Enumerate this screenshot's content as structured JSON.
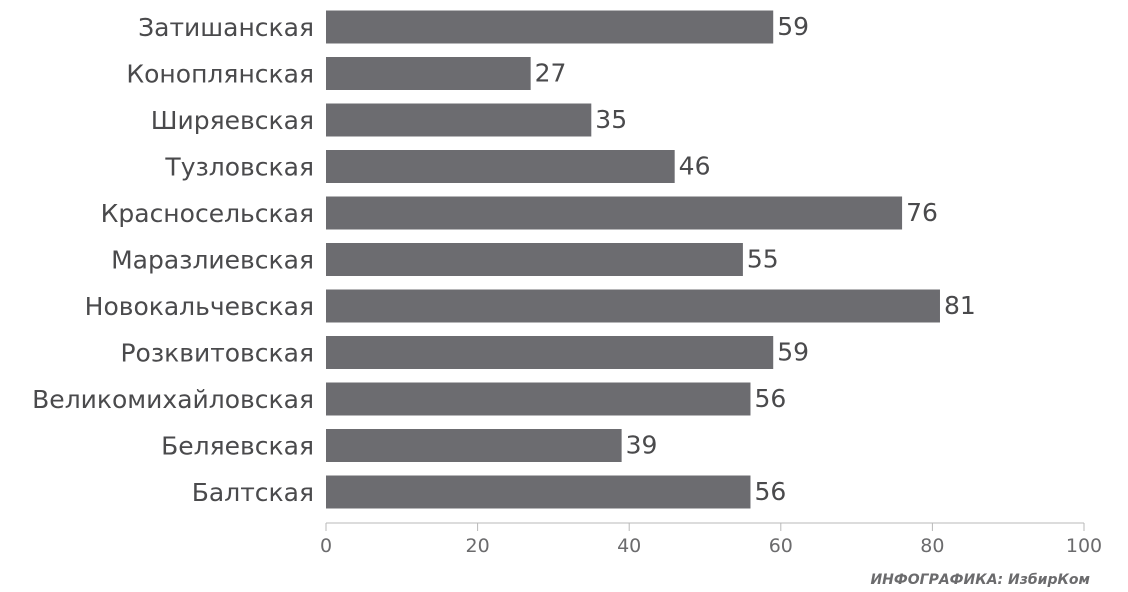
{
  "chart_data": {
    "type": "bar",
    "orientation": "horizontal",
    "categories": [
      "Затишанская",
      "Коноплянская",
      "Ширяевская",
      "Тузловская",
      "Красносельская",
      "Маразлиевская",
      "Новокальчевская",
      "Розквитовская",
      "Великомихайловская",
      "Беляевская",
      "Балтская"
    ],
    "values": [
      59,
      27,
      35,
      46,
      76,
      55,
      81,
      59,
      56,
      39,
      56
    ],
    "xlim": [
      0,
      100
    ],
    "xticks": [
      0,
      20,
      40,
      60,
      80,
      100
    ],
    "grid": false,
    "bar_color": "#6c6c70"
  },
  "credit": "ИНФОГРАФИКА: ИзбирКом"
}
